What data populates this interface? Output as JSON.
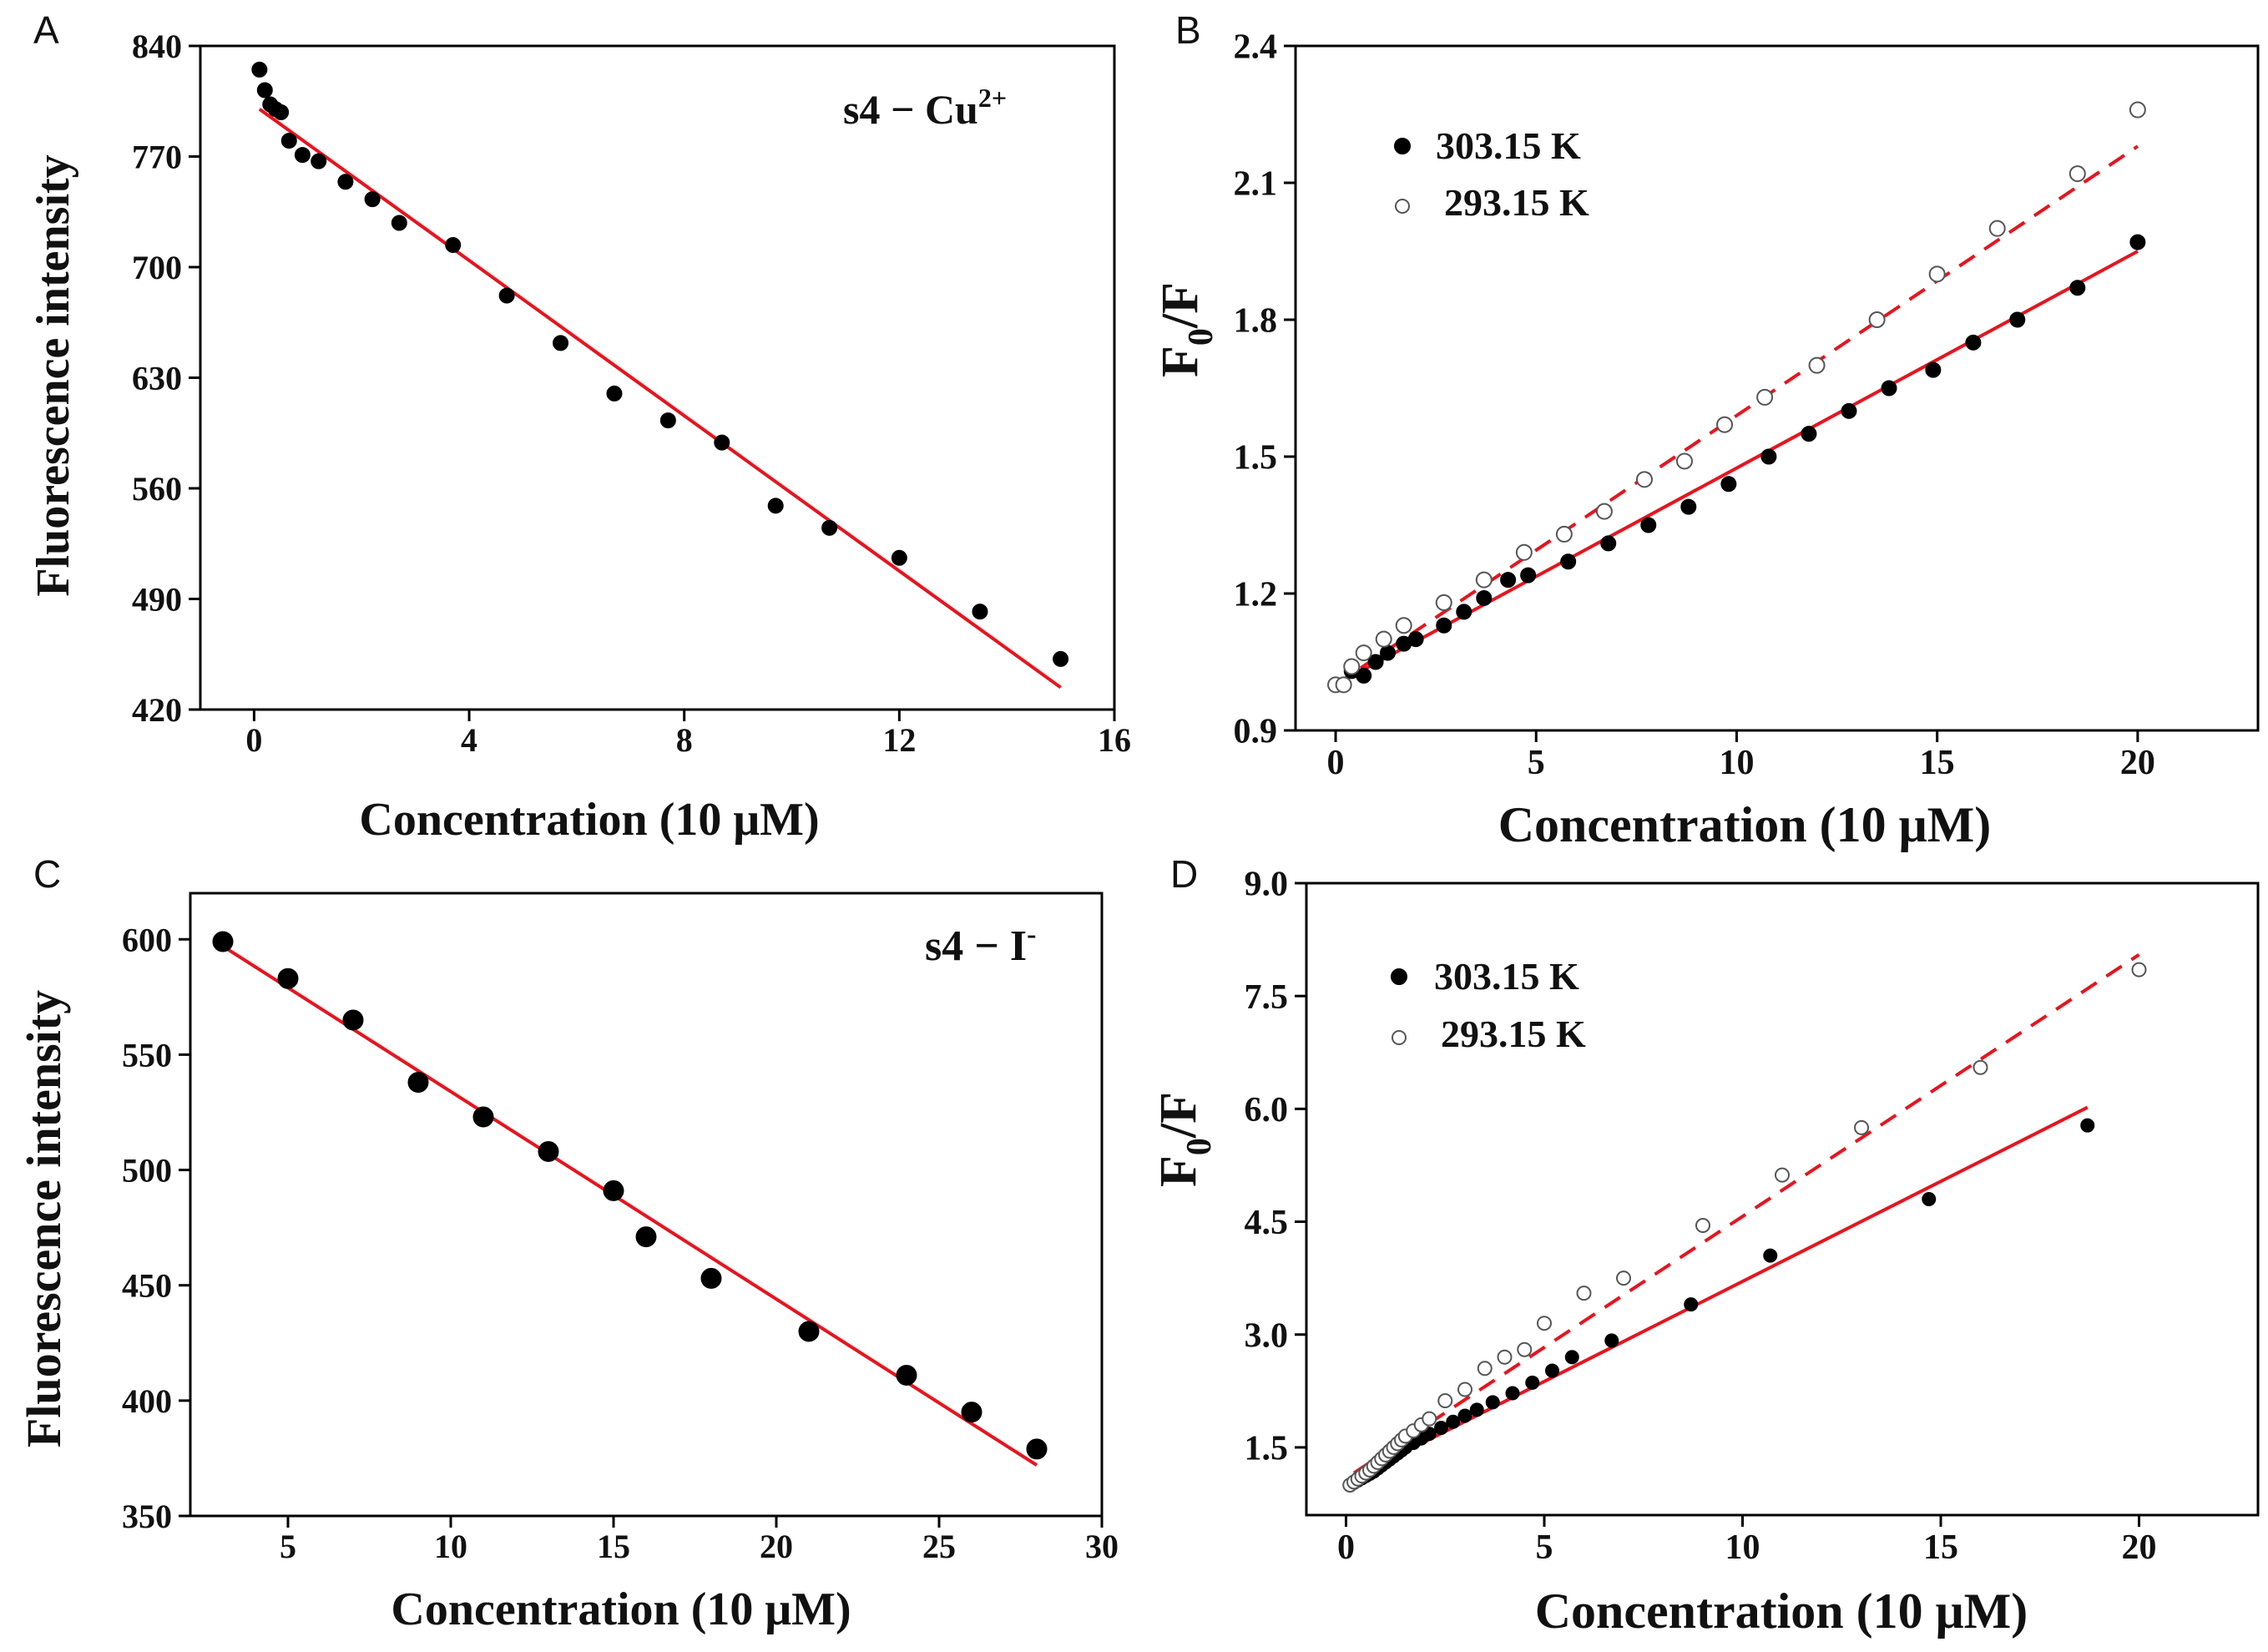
{
  "figure": {
    "background": "#ffffff",
    "axis_color": "#000000",
    "fit_color": "#e8141e"
  },
  "chart_data": [
    {
      "id": "A",
      "type": "scatter",
      "panel_letter": "A",
      "annotation": {
        "prefix": "s4 − Cu",
        "sup": "2+"
      },
      "xlabel": "Concentration (10 μM)",
      "ylabel": "Fluorescence intensity",
      "xlim": [
        -1,
        16
      ],
      "ylim": [
        420,
        840
      ],
      "xticks": [
        0,
        4,
        8,
        12,
        16
      ],
      "yticks": [
        420,
        490,
        560,
        630,
        700,
        770,
        840
      ],
      "series": [
        {
          "name": "s4 − Cu2+",
          "marker": "filled",
          "x": [
            0.1,
            0.2,
            0.3,
            0.4,
            0.5,
            0.65,
            0.9,
            1.2,
            1.7,
            2.2,
            2.7,
            3.7,
            4.7,
            5.7,
            6.7,
            7.7,
            8.7,
            9.7,
            10.7,
            12.0,
            13.5,
            15.0
          ],
          "y": [
            825,
            812,
            803,
            800,
            798,
            780,
            771,
            767,
            754,
            743,
            728,
            714,
            682,
            652,
            620,
            603,
            589,
            549,
            535,
            516,
            482,
            452
          ]
        }
      ],
      "fits": [
        {
          "style": "solid",
          "x": [
            0.1,
            15.0
          ],
          "y": [
            800,
            434
          ]
        }
      ]
    },
    {
      "id": "B",
      "type": "scatter",
      "panel_letter": "B",
      "xlabel": "Concentration (10 μM)",
      "ylabel_main": "F",
      "ylabel_sub": "0",
      "ylabel_tail": "/F",
      "xlim": [
        -1,
        23
      ],
      "ylim": [
        0.9,
        2.4
      ],
      "xticks": [
        0,
        5,
        10,
        15,
        20
      ],
      "ytick_labels": [
        "0.9",
        "1.2",
        "1.5",
        "1.8",
        "2.1",
        "2.4"
      ],
      "legend": [
        {
          "label": "303.15 K",
          "marker": "filled"
        },
        {
          "label": "293.15 K",
          "marker": "open"
        }
      ],
      "series": [
        {
          "name": "303.15 K",
          "marker": "filled",
          "x": [
            0,
            0.2,
            0.4,
            0.7,
            1.0,
            1.3,
            1.7,
            2.0,
            2.7,
            3.2,
            3.7,
            4.3,
            4.8,
            5.8,
            6.8,
            7.8,
            8.8,
            9.8,
            10.8,
            11.8,
            12.8,
            13.8,
            14.9,
            15.9,
            17.0,
            18.5,
            20.0
          ],
          "y": [
            1.0,
            1.0,
            1.03,
            1.02,
            1.05,
            1.07,
            1.09,
            1.1,
            1.13,
            1.16,
            1.19,
            1.23,
            1.24,
            1.27,
            1.31,
            1.35,
            1.39,
            1.44,
            1.5,
            1.55,
            1.6,
            1.65,
            1.69,
            1.75,
            1.8,
            1.87,
            1.97
          ]
        },
        {
          "name": "293.15 K",
          "marker": "open",
          "x": [
            0,
            0.2,
            0.4,
            0.7,
            1.2,
            1.7,
            2.7,
            3.7,
            4.7,
            5.7,
            6.7,
            7.7,
            8.7,
            9.7,
            10.7,
            12.0,
            13.5,
            15.0,
            16.5,
            18.5,
            20.0
          ],
          "y": [
            1.0,
            1.0,
            1.04,
            1.07,
            1.1,
            1.13,
            1.18,
            1.23,
            1.29,
            1.33,
            1.38,
            1.45,
            1.49,
            1.57,
            1.63,
            1.7,
            1.8,
            1.9,
            2.0,
            2.12,
            2.26
          ]
        }
      ],
      "fits": [
        {
          "style": "solid",
          "x": [
            0,
            20
          ],
          "y": [
            1.0,
            1.95
          ]
        },
        {
          "style": "dashed",
          "x": [
            0,
            20
          ],
          "y": [
            1.0,
            2.18
          ]
        }
      ]
    },
    {
      "id": "C",
      "type": "scatter",
      "panel_letter": "C",
      "annotation": {
        "prefix": "s4 − I",
        "sup": "-"
      },
      "xlabel": "Concentration (10 μM)",
      "ylabel": "Fluorescence intensity",
      "xlim": [
        2,
        30
      ],
      "ylim": [
        350,
        620
      ],
      "xticks": [
        5,
        10,
        15,
        20,
        25,
        30
      ],
      "yticks": [
        350,
        400,
        450,
        500,
        550,
        600
      ],
      "series": [
        {
          "name": "s4 − I-",
          "marker": "filled",
          "x": [
            3,
            5,
            7,
            9,
            11,
            13,
            15,
            16,
            18,
            21,
            24,
            26,
            28
          ],
          "y": [
            599,
            583,
            565,
            538,
            523,
            508,
            491,
            471,
            453,
            430,
            411,
            395,
            379
          ]
        }
      ],
      "fits": [
        {
          "style": "solid",
          "x": [
            3,
            28
          ],
          "y": [
            597,
            372
          ]
        }
      ]
    },
    {
      "id": "D",
      "type": "scatter",
      "panel_letter": "D",
      "xlabel": "Concentration (10 μM)",
      "ylabel_main": "F",
      "ylabel_sub": "0",
      "ylabel_tail": "/F",
      "xlim": [
        -1,
        23
      ],
      "ylim": [
        0.6,
        9.0
      ],
      "xticks": [
        0,
        5,
        10,
        15,
        20
      ],
      "ytick_labels": [
        "1.5",
        "3.0",
        "4.5",
        "6.0",
        "7.5",
        "9.0"
      ],
      "legend": [
        {
          "label": "303.15 K",
          "marker": "filled"
        },
        {
          "label": "293.15 K",
          "marker": "open"
        }
      ],
      "series": [
        {
          "name": "303.15 K",
          "marker": "filled",
          "x": [
            0.1,
            0.2,
            0.3,
            0.4,
            0.5,
            0.6,
            0.7,
            0.8,
            0.9,
            1.0,
            1.1,
            1.2,
            1.3,
            1.4,
            1.5,
            1.7,
            1.9,
            2.1,
            2.4,
            2.7,
            3.0,
            3.3,
            3.7,
            4.2,
            4.7,
            5.2,
            5.7,
            6.7,
            8.7,
            10.7,
            14.7,
            18.7
          ],
          "y": [
            1.0,
            1.03,
            1.06,
            1.09,
            1.12,
            1.15,
            1.18,
            1.22,
            1.26,
            1.3,
            1.34,
            1.38,
            1.42,
            1.46,
            1.5,
            1.56,
            1.62,
            1.68,
            1.76,
            1.84,
            1.92,
            2.0,
            2.1,
            2.22,
            2.36,
            2.52,
            2.7,
            2.92,
            3.4,
            4.05,
            4.8,
            5.78
          ]
        },
        {
          "name": "293.15 K",
          "marker": "open",
          "x": [
            0.1,
            0.2,
            0.3,
            0.4,
            0.5,
            0.6,
            0.7,
            0.8,
            0.9,
            1.0,
            1.1,
            1.2,
            1.3,
            1.4,
            1.5,
            1.7,
            1.9,
            2.1,
            2.5,
            3.0,
            3.5,
            4.0,
            4.5,
            5.0,
            6.0,
            7.0,
            9.0,
            11.0,
            13.0,
            16.0,
            20.0
          ],
          "y": [
            1.0,
            1.04,
            1.08,
            1.12,
            1.16,
            1.2,
            1.25,
            1.3,
            1.35,
            1.4,
            1.45,
            1.5,
            1.55,
            1.6,
            1.65,
            1.72,
            1.8,
            1.88,
            2.12,
            2.27,
            2.55,
            2.7,
            2.8,
            3.15,
            3.55,
            3.75,
            4.45,
            5.12,
            5.75,
            6.55,
            7.85
          ]
        }
      ],
      "fits": [
        {
          "style": "solid",
          "x": [
            0.2,
            18.7
          ],
          "y": [
            1.1,
            6.02
          ]
        },
        {
          "style": "dashed",
          "x": [
            0.2,
            20.0
          ],
          "y": [
            1.16,
            8.05
          ]
        }
      ]
    }
  ]
}
